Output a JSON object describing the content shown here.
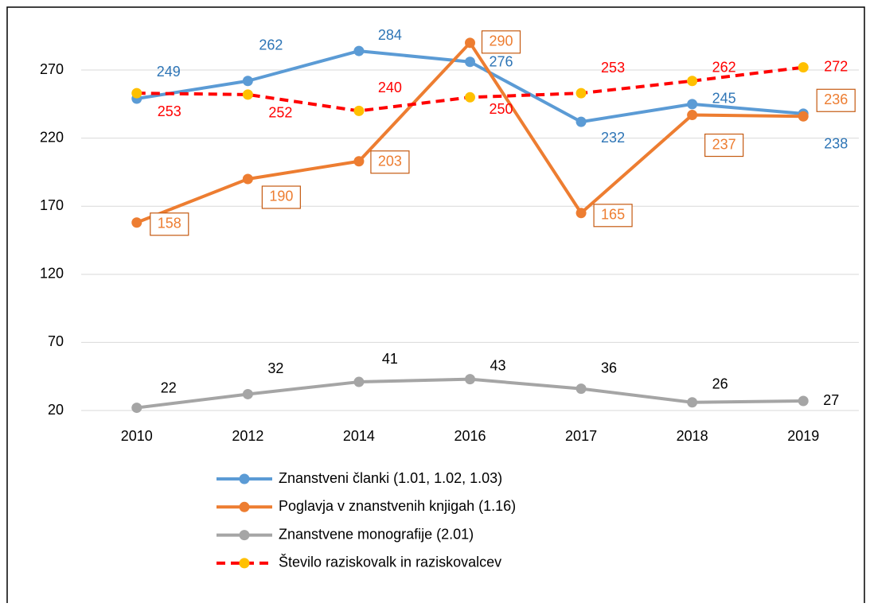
{
  "chart_data": {
    "type": "line",
    "categories": [
      "2010",
      "2012",
      "2014",
      "2016",
      "2017",
      "2018",
      "2019"
    ],
    "series": [
      {
        "name": "Znanstveni članki (1.01, 1.02, 1.03)",
        "color": "#5b9bd5",
        "label_color": "#2e75b6",
        "values": [
          249,
          262,
          284,
          276,
          232,
          245,
          238
        ]
      },
      {
        "name": "Poglavja v znanstvenih knjigah (1.16)",
        "color": "#ed7d31",
        "label_color": "#ed7d31",
        "values": [
          158,
          190,
          203,
          290,
          165,
          237,
          236
        ]
      },
      {
        "name": "Znanstvene monografije (2.01)",
        "color": "#a5a5a5",
        "label_color": "#000000",
        "values": [
          22,
          32,
          41,
          43,
          36,
          26,
          27
        ]
      },
      {
        "name": "Število raziskovalk in raziskovalcev",
        "color": "#ff0000",
        "marker_color": "#ffc000",
        "label_color": "#ff0000",
        "dashed": true,
        "values": [
          253,
          252,
          240,
          250,
          253,
          262,
          272
        ]
      }
    ],
    "ylim": [
      20,
      300
    ],
    "yticks": [
      20,
      70,
      120,
      170,
      220,
      270
    ],
    "grid": true,
    "legend": "bottom"
  }
}
